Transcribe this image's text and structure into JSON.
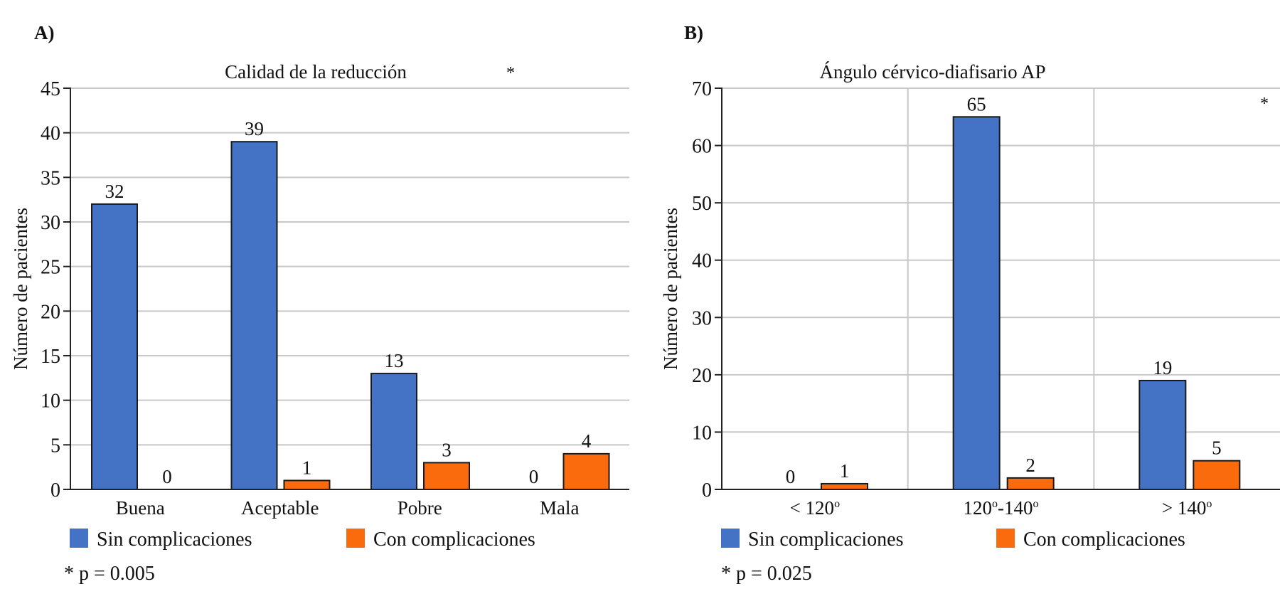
{
  "colors": {
    "sin": "#4472C4",
    "con": "#F96B0C",
    "grid": "#C8C8C8",
    "axis": "#222222"
  },
  "chart_data": [
    {
      "type": "bar",
      "panel_label": "A)",
      "title": "Calidad de la reducción",
      "xlabel": "",
      "ylabel": "Número de pacientes",
      "ylim": [
        0,
        45
      ],
      "yticks": [
        0,
        5,
        10,
        15,
        20,
        25,
        30,
        35,
        40,
        45
      ],
      "grid": "horizontal",
      "vertical_grid": false,
      "categories": [
        "Buena",
        "Aceptable",
        "Pobre",
        "Mala"
      ],
      "series": [
        {
          "name": "Sin complicaciones",
          "values": [
            32,
            39,
            13,
            0
          ]
        },
        {
          "name": "Con complicaciones",
          "values": [
            0,
            1,
            3,
            4
          ]
        }
      ],
      "significance_marker": "*",
      "legend_position": "bottom",
      "note": "* p = 0.005"
    },
    {
      "type": "bar",
      "panel_label": "B)",
      "title": "Ángulo cérvico-diafisario AP",
      "xlabel": "",
      "ylabel": "Número de pacientes",
      "ylim": [
        0,
        70
      ],
      "yticks": [
        0,
        10,
        20,
        30,
        40,
        50,
        60,
        70
      ],
      "grid": "both",
      "vertical_grid": true,
      "categories": [
        "< 120º",
        "120º-140º",
        "> 140º"
      ],
      "categories_parts": [
        [
          "< 120",
          "o",
          ""
        ],
        [
          "120",
          "o",
          "-140",
          "o"
        ],
        [
          "> 140",
          "o",
          ""
        ]
      ],
      "series": [
        {
          "name": "Sin complicaciones",
          "values": [
            0,
            65,
            19
          ]
        },
        {
          "name": "Con complicaciones",
          "values": [
            1,
            2,
            5
          ]
        }
      ],
      "significance_marker": "*",
      "legend_position": "bottom",
      "note": "* p = 0.025"
    }
  ]
}
